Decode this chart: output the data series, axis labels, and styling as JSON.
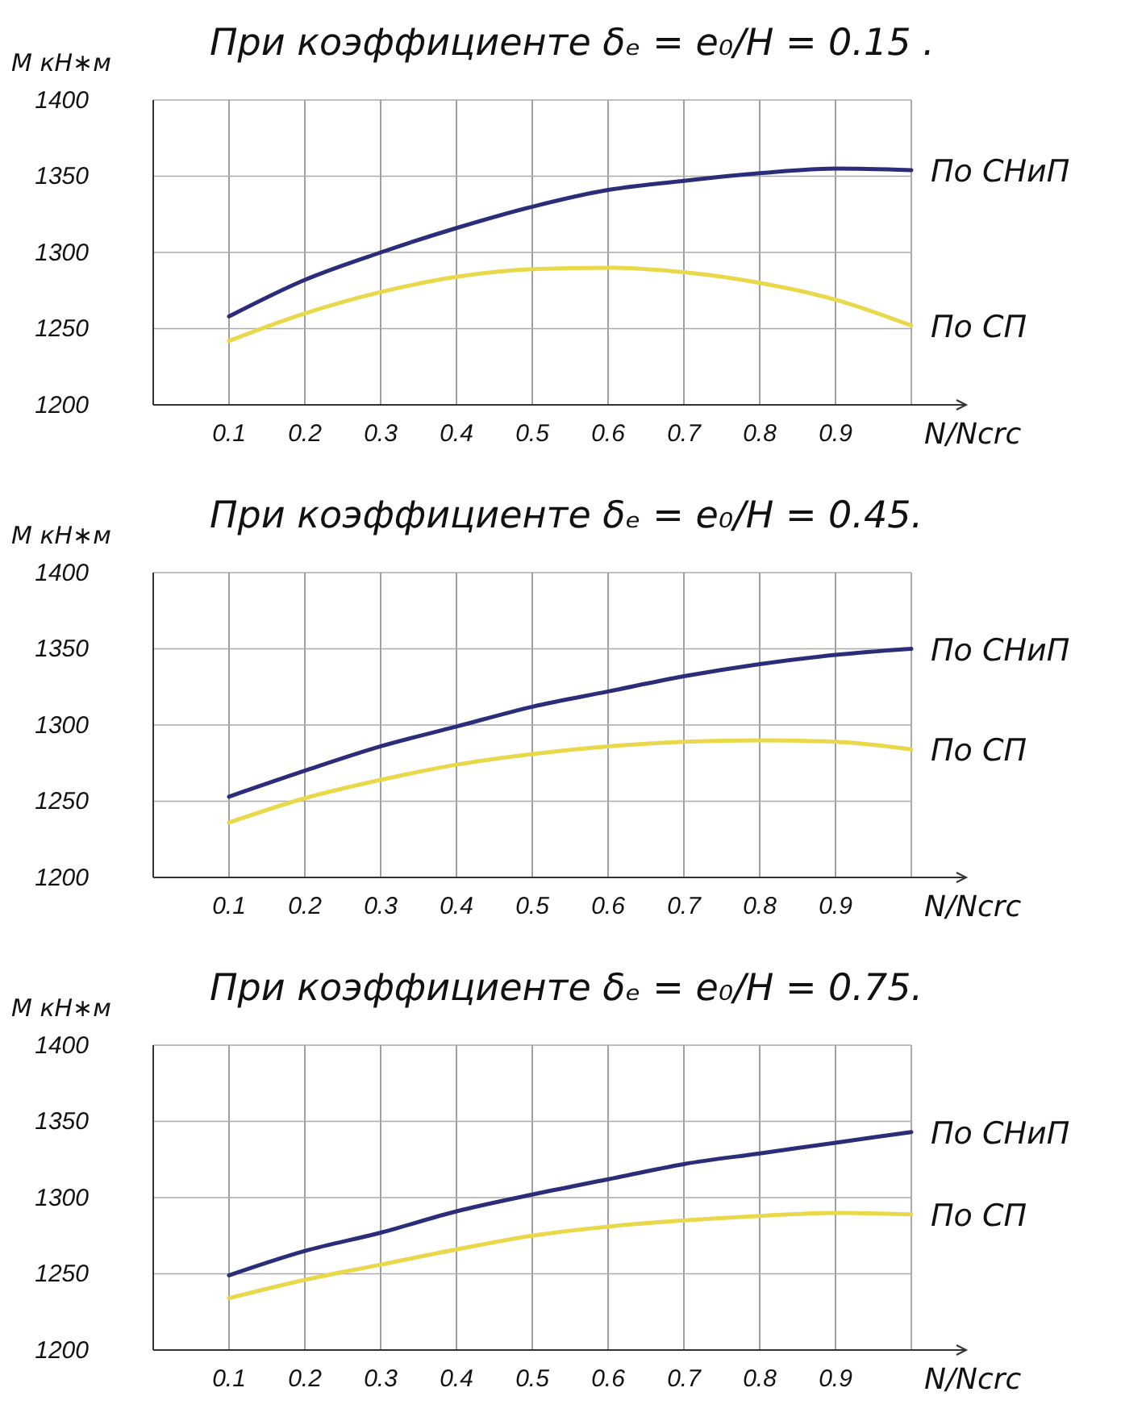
{
  "chart_data": [
    {
      "type": "line",
      "title": "При коэффициенте δₑ = e₀/H = 0.15 .",
      "xlabel": "N/Ncrc",
      "ylabel": "M кН∗м",
      "x": [
        0.1,
        0.2,
        0.3,
        0.4,
        0.5,
        0.6,
        0.7,
        0.8,
        0.9,
        1.0
      ],
      "xlim": [
        0,
        1
      ],
      "xticks": [
        0.1,
        0.2,
        0.3,
        0.4,
        0.5,
        0.6,
        0.7,
        0.8,
        0.9
      ],
      "ylim": [
        1200,
        1400
      ],
      "yticks": [
        1200,
        1250,
        1300,
        1350,
        1400
      ],
      "grid": true,
      "series": [
        {
          "name": "По СНиП",
          "color": "#2b2d7a",
          "values": [
            1258,
            1282,
            1300,
            1316,
            1330,
            1341,
            1347,
            1352,
            1355,
            1354
          ]
        },
        {
          "name": "По СП",
          "color": "#e8d84a",
          "values": [
            1242,
            1260,
            1274,
            1284,
            1289,
            1290,
            1287,
            1280,
            1269,
            1252
          ]
        }
      ]
    },
    {
      "type": "line",
      "title": "При коэффициенте δₑ = e₀/H = 0.45.",
      "xlabel": "N/Ncrc",
      "ylabel": "M кН∗м",
      "x": [
        0.1,
        0.2,
        0.3,
        0.4,
        0.5,
        0.6,
        0.7,
        0.8,
        0.9,
        1.0
      ],
      "xlim": [
        0,
        1
      ],
      "xticks": [
        0.1,
        0.2,
        0.3,
        0.4,
        0.5,
        0.6,
        0.7,
        0.8,
        0.9
      ],
      "ylim": [
        1200,
        1400
      ],
      "yticks": [
        1200,
        1250,
        1300,
        1350,
        1400
      ],
      "grid": true,
      "series": [
        {
          "name": "По СНиП",
          "color": "#2b2d7a",
          "values": [
            1253,
            1270,
            1286,
            1299,
            1312,
            1322,
            1332,
            1340,
            1346,
            1350
          ]
        },
        {
          "name": "По СП",
          "color": "#e8d84a",
          "values": [
            1236,
            1252,
            1264,
            1274,
            1281,
            1286,
            1289,
            1290,
            1289,
            1284
          ]
        }
      ]
    },
    {
      "type": "line",
      "title": "При коэффициенте δₑ = e₀/H = 0.75.",
      "xlabel": "N/Ncrc",
      "ylabel": "M кН∗м",
      "x": [
        0.1,
        0.2,
        0.3,
        0.4,
        0.5,
        0.6,
        0.7,
        0.8,
        0.9,
        1.0
      ],
      "xlim": [
        0,
        1
      ],
      "xticks": [
        0.1,
        0.2,
        0.3,
        0.4,
        0.5,
        0.6,
        0.7,
        0.8,
        0.9
      ],
      "ylim": [
        1200,
        1400
      ],
      "yticks": [
        1200,
        1250,
        1300,
        1350,
        1400
      ],
      "grid": true,
      "series": [
        {
          "name": "По СНиП",
          "color": "#2b2d7a",
          "values": [
            1249,
            1265,
            1277,
            1291,
            1302,
            1312,
            1322,
            1329,
            1336,
            1343
          ]
        },
        {
          "name": "По СП",
          "color": "#e8d84a",
          "values": [
            1234,
            1246,
            1256,
            1266,
            1275,
            1281,
            1285,
            1288,
            1290,
            1289
          ]
        }
      ]
    }
  ]
}
